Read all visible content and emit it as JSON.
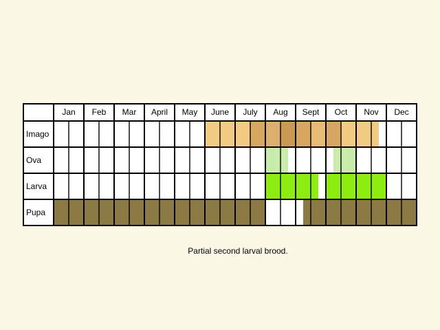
{
  "caption": "Partial second larval brood.",
  "chart_data": {
    "type": "table",
    "months": [
      "Jan",
      "Feb",
      "Mar",
      "April",
      "May",
      "June",
      "July",
      "Aug",
      "Sept",
      "Oct",
      "Nov",
      "Dec"
    ],
    "stages": [
      {
        "label": "Imago",
        "periods": [
          {
            "start": 5.0,
            "end": 6.5,
            "color": "#F2CB82"
          },
          {
            "start": 6.5,
            "end": 7.0,
            "color": "#D7A661"
          },
          {
            "start": 7.0,
            "end": 7.5,
            "color": "#DDAF6D"
          },
          {
            "start": 7.5,
            "end": 8.0,
            "color": "#CA9A53"
          },
          {
            "start": 8.0,
            "end": 8.5,
            "color": "#D7A661"
          },
          {
            "start": 8.5,
            "end": 9.0,
            "color": "#E6BB73"
          },
          {
            "start": 9.0,
            "end": 9.5,
            "color": "#D7A661"
          },
          {
            "start": 9.5,
            "end": 10.75,
            "color": "#F2CB82"
          }
        ]
      },
      {
        "label": "Ova",
        "periods": [
          {
            "start": 7.0,
            "end": 7.75,
            "color": "#C9ECAC"
          },
          {
            "start": 9.25,
            "end": 10.0,
            "color": "#C9ECAC"
          }
        ]
      },
      {
        "label": "Larva",
        "periods": [
          {
            "start": 7.0,
            "end": 8.75,
            "color": "#8DEC10"
          },
          {
            "start": 9.0,
            "end": 11.0,
            "color": "#8DEC10"
          }
        ]
      },
      {
        "label": "Pupa",
        "periods": [
          {
            "start": 0.0,
            "end": 7.0,
            "color": "#8C7A45"
          },
          {
            "start": 8.25,
            "end": 12.0,
            "color": "#8C7A45"
          }
        ]
      }
    ]
  }
}
